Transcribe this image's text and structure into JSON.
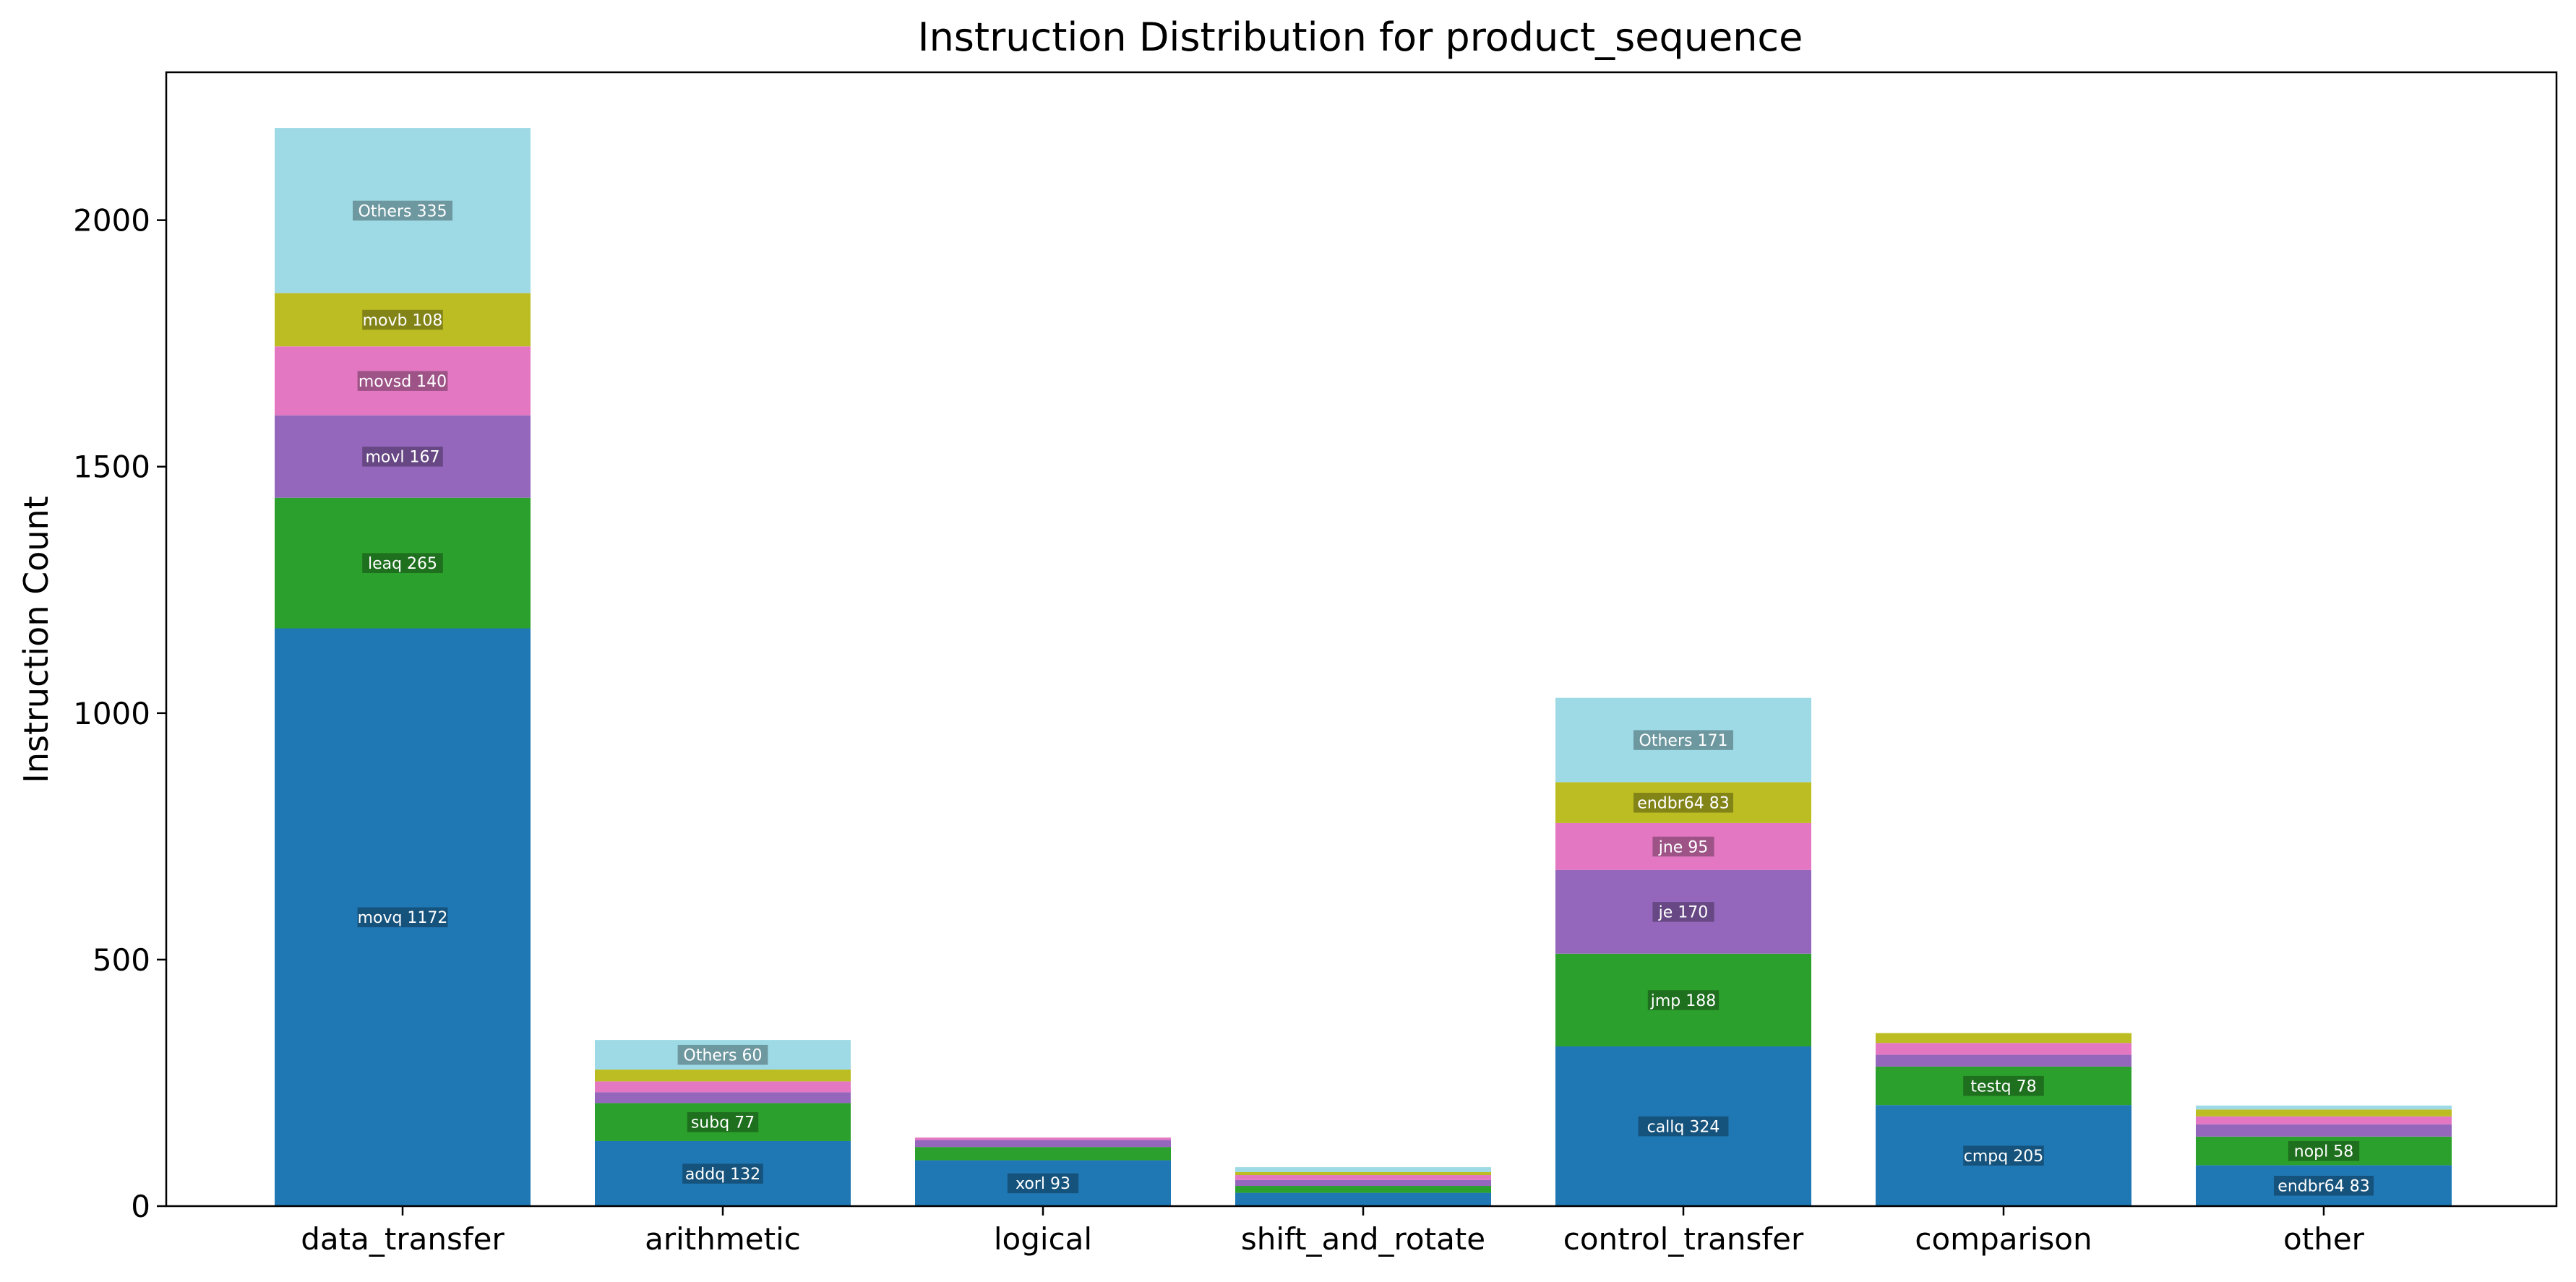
{
  "chart_data": {
    "type": "bar",
    "stacked": true,
    "title": "Instruction Distribution for product_sequence",
    "xlabel": "",
    "ylabel": "Instruction Count",
    "ylim": [
      0,
      2300
    ],
    "yticks": [
      0,
      500,
      1000,
      1500,
      2000
    ],
    "grid": false,
    "legend": "none",
    "categories": [
      "data_transfer",
      "arithmetic",
      "logical",
      "shift_and_rotate",
      "control_transfer",
      "comparison",
      "other"
    ],
    "layer_colors": [
      "#1f77b4",
      "#2ca02c",
      "#9467bd",
      "#e377c2",
      "#bcbd22",
      "#9edae5"
    ],
    "stacks": [
      {
        "category": "data_transfer",
        "segments": [
          {
            "name": "movq",
            "value": 1172,
            "label": "movq 1172"
          },
          {
            "name": "leaq",
            "value": 265,
            "label": "leaq 265"
          },
          {
            "name": "movl",
            "value": 167,
            "label": "movl 167"
          },
          {
            "name": "movsd",
            "value": 140,
            "label": "movsd 140"
          },
          {
            "name": "movb",
            "value": 108,
            "label": "movb 108"
          },
          {
            "name": "Others",
            "value": 335,
            "label": "Others 335"
          }
        ]
      },
      {
        "category": "arithmetic",
        "segments": [
          {
            "name": "addq",
            "value": 132,
            "label": "addq 132"
          },
          {
            "name": "subq",
            "value": 77,
            "label": "subq 77"
          },
          {
            "name": "",
            "value": 22,
            "label": ""
          },
          {
            "name": "",
            "value": 22,
            "label": ""
          },
          {
            "name": "",
            "value": 24,
            "label": ""
          },
          {
            "name": "Others",
            "value": 60,
            "label": "Others 60"
          }
        ]
      },
      {
        "category": "logical",
        "segments": [
          {
            "name": "xorl",
            "value": 93,
            "label": "xorl 93"
          },
          {
            "name": "",
            "value": 27,
            "label": ""
          },
          {
            "name": "",
            "value": 14,
            "label": ""
          },
          {
            "name": "",
            "value": 5,
            "label": ""
          }
        ]
      },
      {
        "category": "shift_and_rotate",
        "segments": [
          {
            "name": "",
            "value": 27,
            "label": ""
          },
          {
            "name": "",
            "value": 14,
            "label": ""
          },
          {
            "name": "",
            "value": 12,
            "label": ""
          },
          {
            "name": "",
            "value": 10,
            "label": ""
          },
          {
            "name": "",
            "value": 6,
            "label": ""
          },
          {
            "name": "",
            "value": 10,
            "label": ""
          }
        ]
      },
      {
        "category": "control_transfer",
        "segments": [
          {
            "name": "callq",
            "value": 324,
            "label": "callq 324"
          },
          {
            "name": "jmp",
            "value": 188,
            "label": "jmp 188"
          },
          {
            "name": "je",
            "value": 170,
            "label": "je 170"
          },
          {
            "name": "jne",
            "value": 95,
            "label": "jne 95"
          },
          {
            "name": "endbr64",
            "value": 83,
            "label": "endbr64 83"
          },
          {
            "name": "Others",
            "value": 171,
            "label": "Others 171"
          }
        ]
      },
      {
        "category": "comparison",
        "segments": [
          {
            "name": "cmpq",
            "value": 205,
            "label": "cmpq 205"
          },
          {
            "name": "testq",
            "value": 78,
            "label": "testq 78"
          },
          {
            "name": "",
            "value": 24,
            "label": ""
          },
          {
            "name": "",
            "value": 24,
            "label": ""
          },
          {
            "name": "",
            "value": 20,
            "label": ""
          }
        ]
      },
      {
        "category": "other",
        "segments": [
          {
            "name": "endbr64",
            "value": 83,
            "label": "endbr64 83"
          },
          {
            "name": "nopl",
            "value": 58,
            "label": "nopl 58"
          },
          {
            "name": "",
            "value": 25,
            "label": ""
          },
          {
            "name": "",
            "value": 16,
            "label": ""
          },
          {
            "name": "",
            "value": 14,
            "label": ""
          },
          {
            "name": "",
            "value": 8,
            "label": ""
          }
        ]
      }
    ]
  }
}
